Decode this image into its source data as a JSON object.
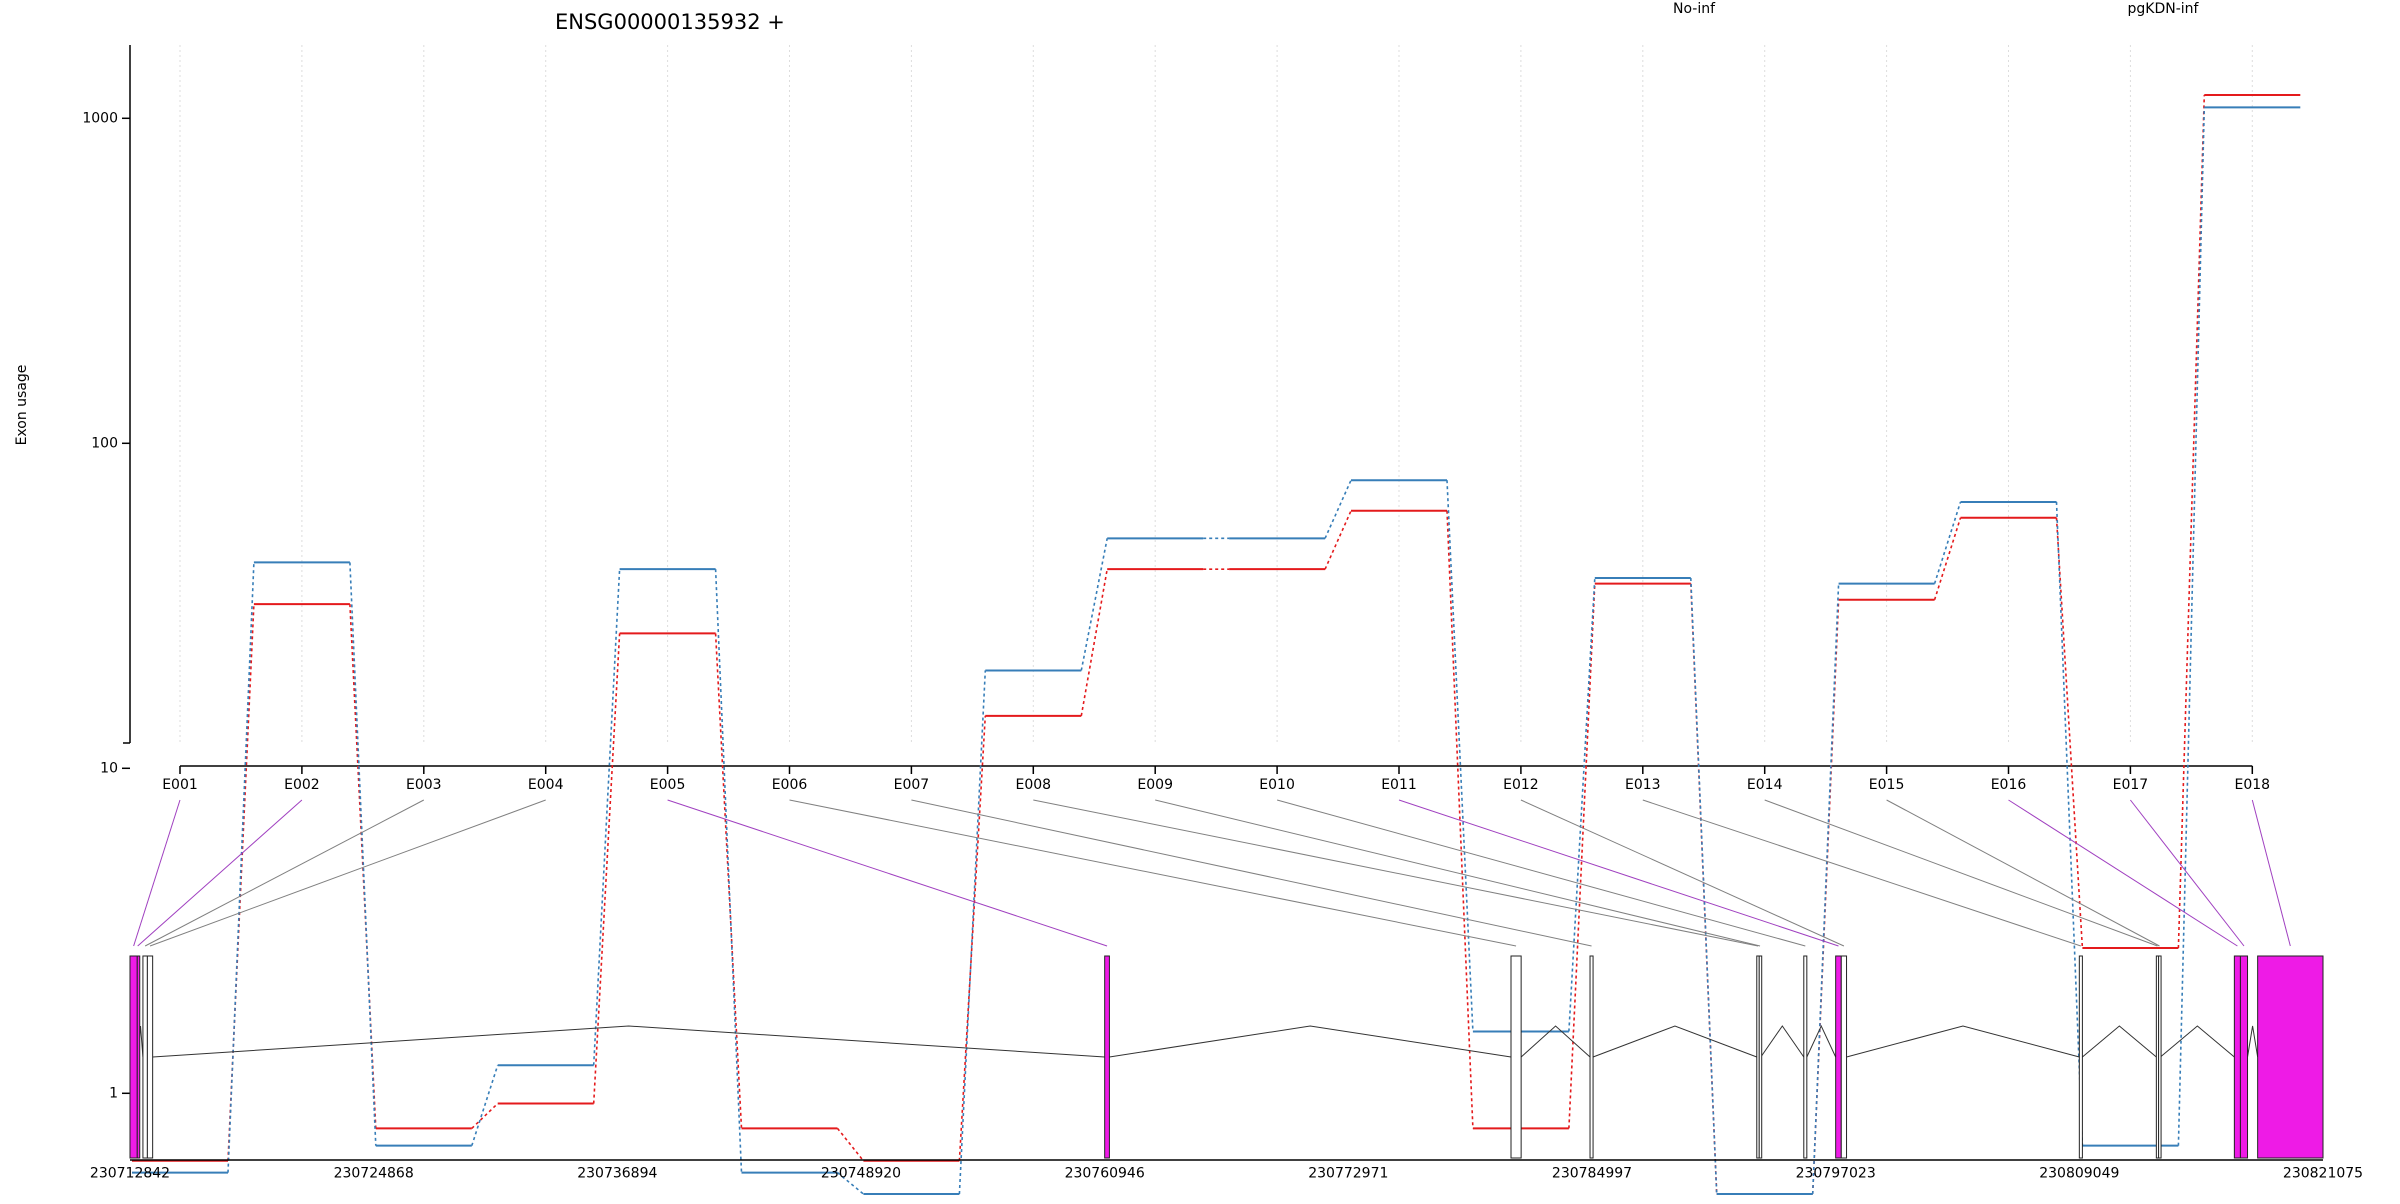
{
  "chart_data": {
    "type": "line",
    "title": "ENSG00000135932 +",
    "ylabel": "Exon usage",
    "xlabel": "",
    "y_scale": "log",
    "ylim": [
      0.5,
      1400
    ],
    "y_ticks": [
      1,
      10,
      100,
      1000
    ],
    "y_tick_labels": [
      "1",
      "10",
      "100",
      "1000"
    ],
    "grid": "vertical dotted",
    "legend_placement": "top",
    "categories": [
      "E001",
      "E002",
      "E003",
      "E004",
      "E005",
      "E006",
      "E007",
      "E008",
      "E009",
      "E010",
      "E011",
      "E012",
      "E013",
      "E014",
      "E015",
      "E016",
      "E017",
      "E018"
    ],
    "series": [
      {
        "name": "No-inf",
        "color": "#e41a1c",
        "values": [
          0.62,
          32,
          0.78,
          0.93,
          26,
          0.78,
          0.62,
          14.5,
          41,
          41,
          62,
          0.78,
          37,
          0.49,
          33,
          59,
          2.8,
          1180
        ]
      },
      {
        "name": "pgKDN-inf",
        "color": "#377eb8",
        "values": [
          0.57,
          43,
          0.69,
          1.22,
          41,
          0.57,
          0.49,
          20,
          51,
          51,
          77,
          1.55,
          38.5,
          0.49,
          37,
          66,
          0.69,
          1080
        ]
      }
    ],
    "gene_model": {
      "coordinate_ticks": [
        "230712842",
        "230724868",
        "230736894",
        "230748920",
        "230760946",
        "230772971",
        "230784997",
        "230797023",
        "230809049",
        "230821075"
      ],
      "x_range": [
        230712842,
        230821075
      ],
      "highlight_color": "#ee1be6",
      "exon_colors": {
        "significant": "#ee1be6",
        "normal": "#ffffff",
        "link_significant": "#a040c0",
        "link_normal": "#808080"
      },
      "exons": [
        {
          "id": "E001",
          "start": 230712842,
          "end": 230713200,
          "significant": true
        },
        {
          "id": "E002",
          "start": 230713200,
          "end": 230713242,
          "significant": true
        },
        {
          "id": "E003",
          "start": 230713480,
          "end": 230713700,
          "significant": false
        },
        {
          "id": "E004",
          "start": 230713700,
          "end": 230713960,
          "significant": false
        },
        {
          "id": "E005",
          "start": 230760946,
          "end": 230761180,
          "significant": true
        },
        {
          "id": "E006",
          "start": 230781000,
          "end": 230781500,
          "significant": false
        },
        {
          "id": "E007",
          "start": 230784900,
          "end": 230785050,
          "significant": false
        },
        {
          "id": "E008",
          "start": 230793130,
          "end": 230793250,
          "significant": false
        },
        {
          "id": "E009",
          "start": 230793250,
          "end": 230793330,
          "significant": false
        },
        {
          "id": "E010",
          "start": 230795450,
          "end": 230795600,
          "significant": false
        },
        {
          "id": "E011",
          "start": 230797023,
          "end": 230797300,
          "significant": true
        },
        {
          "id": "E012",
          "start": 230797300,
          "end": 230797560,
          "significant": false
        },
        {
          "id": "E013",
          "start": 230809049,
          "end": 230809200,
          "significant": false
        },
        {
          "id": "E014",
          "start": 230812850,
          "end": 230812960,
          "significant": false
        },
        {
          "id": "E015",
          "start": 230812960,
          "end": 230813050,
          "significant": false
        },
        {
          "id": "E016",
          "start": 230816700,
          "end": 230817000,
          "significant": true
        },
        {
          "id": "E017",
          "start": 230817000,
          "end": 230817350,
          "significant": true
        },
        {
          "id": "E018",
          "start": 230817850,
          "end": 230821075,
          "significant": true
        }
      ]
    }
  }
}
